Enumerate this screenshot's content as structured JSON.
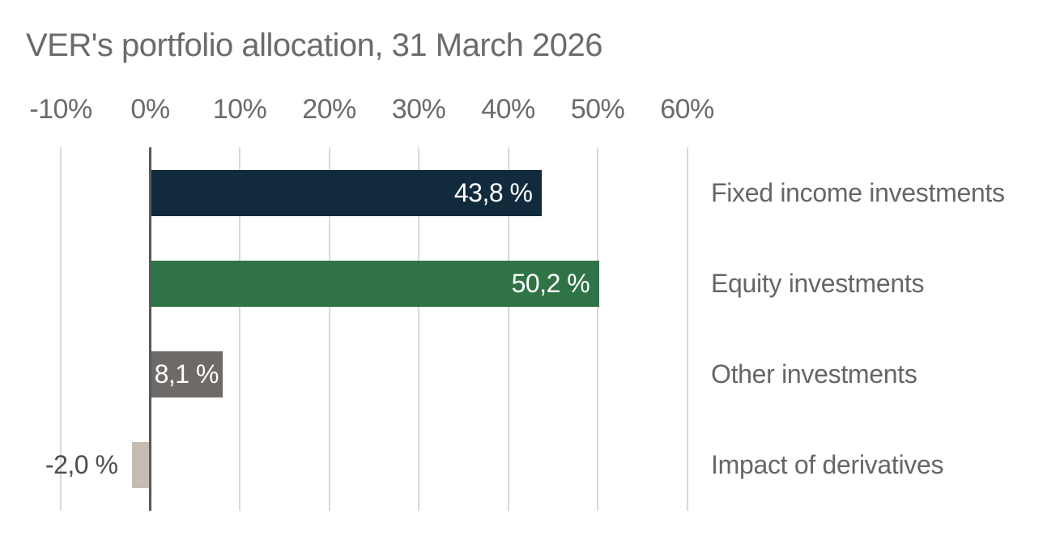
{
  "title": "VER's portfolio allocation, 31 March 2026",
  "chart_data": {
    "type": "bar",
    "orientation": "horizontal",
    "title": "VER's portfolio allocation, 31 March 2026",
    "categories": [
      "Fixed income investments",
      "Equity investments",
      "Other investments",
      "Impact of derivatives"
    ],
    "values": [
      43.8,
      50.2,
      8.1,
      -2.0
    ],
    "value_labels": [
      "43,8 %",
      "50,2 %",
      "8,1 %",
      "-2,0 %"
    ],
    "value_label_placement": [
      "inside-right",
      "inside-right",
      "inside-center",
      "outside-left"
    ],
    "value_label_colors": [
      "#ffffff",
      "#ffffff",
      "#ffffff",
      "#4d4d4d"
    ],
    "bar_colors": [
      "#112b3d",
      "#2f7347",
      "#6e6a67",
      "#c5bcb2"
    ],
    "x_tick_labels": [
      "-10%",
      "0%",
      "10%",
      "20%",
      "30%",
      "40%",
      "50%",
      "60%"
    ],
    "x_tick_values": [
      -10,
      0,
      10,
      20,
      30,
      40,
      50,
      60
    ],
    "xlim": [
      -10,
      60
    ],
    "grid": true,
    "legend_position": "none",
    "axis_position": "top",
    "colors": {
      "gridline": "#d9d9d9",
      "zero_line": "#595959",
      "text": "#6b6b6b",
      "category_text": "#666666"
    }
  }
}
